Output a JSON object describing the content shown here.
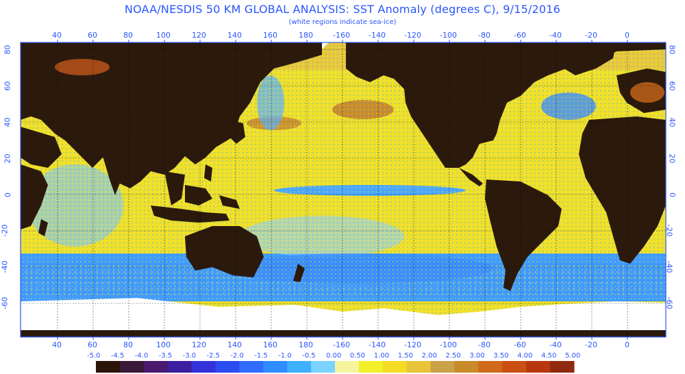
{
  "title": "NOAA/NESDIS 50 KM GLOBAL ANALYSIS: SST Anomaly (degrees C), 9/15/2016",
  "subtitle": "(white regions indicate sea-ice)",
  "longitude_labels": [
    "40",
    "60",
    "80",
    "100",
    "120",
    "140",
    "160",
    "180",
    "-160",
    "-140",
    "-120",
    "-100",
    "-80",
    "-60",
    "-40",
    "-20",
    "0"
  ],
  "latitude_labels": [
    "80",
    "60",
    "40",
    "20",
    "0",
    "-20",
    "-40",
    "-60"
  ],
  "legend": {
    "labels": [
      "-5.0",
      "-4.5",
      "-4.0",
      "-3.5",
      "-3.0",
      "-2.5",
      "-2.0",
      "-1.5",
      "-1.0",
      "-0.5",
      "0.00",
      "0.50",
      "1.00",
      "1.50",
      "2.00",
      "2.50",
      "3.00",
      "3.50",
      "4.00",
      "4.50",
      "5.00"
    ],
    "colors": [
      "#2b1408",
      "#3a1838",
      "#4a1a6e",
      "#3b1f9e",
      "#3232d8",
      "#2a4cf0",
      "#2f6cff",
      "#2f8dff",
      "#3fb0ff",
      "#7bd3ff",
      "#f5f5a0",
      "#f3ef2a",
      "#f4dc26",
      "#e8c43a",
      "#c9a24a",
      "#c98a2a",
      "#d06a1a",
      "#c95012",
      "#b8360e",
      "#8f2a0e"
    ]
  },
  "colors": {
    "land": "#2b1a0c",
    "sea_ice": "#ffffff",
    "frame": "#2a55ff",
    "label": "#2a55ff"
  }
}
